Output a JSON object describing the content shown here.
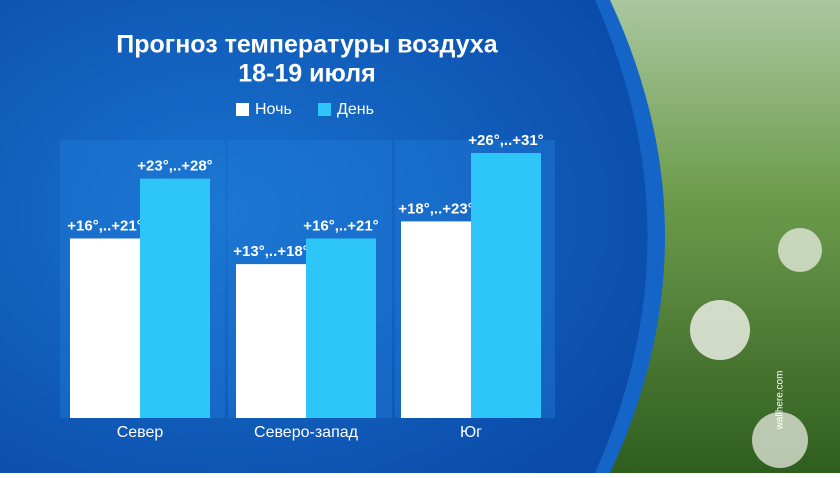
{
  "chart_data": {
    "type": "bar",
    "title": "Прогноз температуры воздуха",
    "subtitle": "18-19 июля",
    "categories": [
      "Север",
      "Северо-запад",
      "Юг"
    ],
    "series": [
      {
        "name": "Ночь",
        "color": "#ffffff",
        "values": [
          21,
          18,
          23
        ],
        "value_labels": [
          "+16°,..+21°",
          "+13°,..+18°",
          "+18°,..+23°"
        ]
      },
      {
        "name": "День",
        "color": "#2ec5f8",
        "values": [
          28,
          21,
          31
        ],
        "value_labels": [
          "+23°,..+28°",
          "+16°,..+21°",
          "+26°,..+31°"
        ]
      }
    ],
    "legend": "top"
  },
  "watermark": "wallhere.com"
}
